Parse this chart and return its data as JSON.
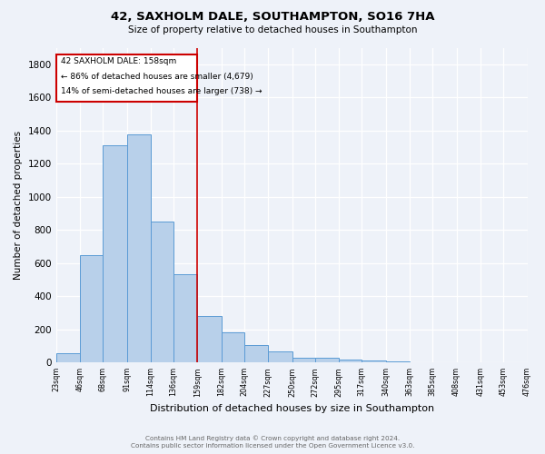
{
  "title": "42, SAXHOLM DALE, SOUTHAMPTON, SO16 7HA",
  "subtitle": "Size of property relative to detached houses in Southampton",
  "xlabel": "Distribution of detached houses by size in Southampton",
  "ylabel": "Number of detached properties",
  "bar_values": [
    55,
    645,
    1310,
    1375,
    850,
    530,
    280,
    180,
    105,
    65,
    30,
    30,
    20,
    10,
    5,
    0,
    0,
    0,
    0,
    0
  ],
  "bin_edges": [
    23,
    46,
    68,
    91,
    114,
    136,
    159,
    182,
    204,
    227,
    250,
    272,
    295,
    317,
    340,
    363,
    385,
    408,
    431,
    453,
    476
  ],
  "x_tick_labels": [
    "23sqm",
    "46sqm",
    "68sqm",
    "91sqm",
    "114sqm",
    "136sqm",
    "159sqm",
    "182sqm",
    "204sqm",
    "227sqm",
    "250sqm",
    "272sqm",
    "295sqm",
    "317sqm",
    "340sqm",
    "363sqm",
    "385sqm",
    "408sqm",
    "431sqm",
    "453sqm",
    "476sqm"
  ],
  "bar_color": "#b8d0ea",
  "bar_edge_color": "#5b9bd5",
  "property_line_x": 159,
  "ylim": [
    0,
    1900
  ],
  "yticks": [
    0,
    200,
    400,
    600,
    800,
    1000,
    1200,
    1400,
    1600,
    1800
  ],
  "annotation_title": "42 SAXHOLM DALE: 158sqm",
  "annotation_line1": "← 86% of detached houses are smaller (4,679)",
  "annotation_line2": "14% of semi-detached houses are larger (738) →",
  "annotation_box_color": "#cc0000",
  "background_color": "#eef2f9",
  "grid_color": "#ffffff",
  "footer_line1": "Contains HM Land Registry data © Crown copyright and database right 2024.",
  "footer_line2": "Contains public sector information licensed under the Open Government Licence v3.0."
}
